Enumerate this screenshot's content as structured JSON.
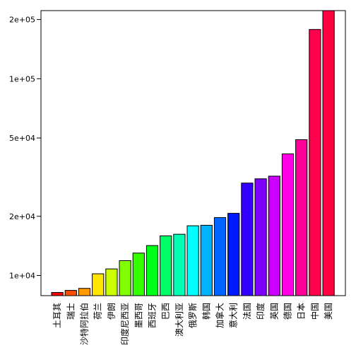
{
  "chart_data": {
    "type": "bar",
    "title": "",
    "xlabel": "",
    "ylabel": "",
    "yscale": "log",
    "ylim": [
      7900,
      222000
    ],
    "grid": false,
    "legend": "none",
    "categories": [
      "土耳其",
      "瑞士",
      "沙特阿拉伯",
      "荷兰",
      "伊朗",
      "印度尼西亚",
      "墨西哥",
      "西班牙",
      "巴西",
      "澳大利亚",
      "俄罗斯",
      "韩国",
      "加拿大",
      "意大利",
      "法国",
      "印度",
      "英国",
      "德国",
      "日本",
      "中国",
      "美国"
    ],
    "values": [
      8200,
      8400,
      8600,
      10200,
      10800,
      11900,
      13000,
      14200,
      15900,
      16200,
      17900,
      18000,
      19700,
      20700,
      29500,
      31000,
      32000,
      41500,
      49000,
      178000,
      222000
    ],
    "colors": [
      "#FF0000",
      "#FF4D00",
      "#FF9900",
      "#FFE500",
      "#CCFF00",
      "#80FF00",
      "#33FF00",
      "#00FF19",
      "#00FF66",
      "#00FFB2",
      "#00FFFF",
      "#00B3FF",
      "#0066FF",
      "#001AFF",
      "#3300FF",
      "#7F00FF",
      "#CC00FF",
      "#FF00E6",
      "#FF0099",
      "#FF004D",
      "#FF0040"
    ],
    "y_ticks": [
      10000,
      20000,
      50000,
      100000,
      200000
    ],
    "y_tick_labels": [
      "1e+04",
      "2e+04",
      "5e+04",
      "1e+05",
      "2e+05"
    ]
  }
}
